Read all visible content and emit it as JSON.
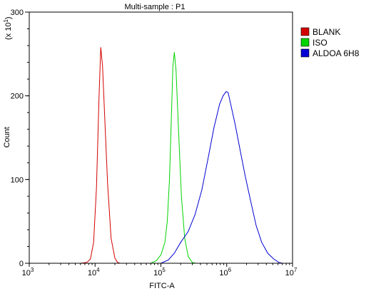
{
  "chart_data": {
    "type": "line",
    "title": "Multi-sample : P1",
    "xlabel": "FITC-A",
    "ylabel": "Count",
    "y_multiplier_label": "(x 10",
    "y_multiplier_exp": "1",
    "y_multiplier_close": ")",
    "x_scale": "log",
    "xlim": [
      1000,
      10000000
    ],
    "ylim": [
      0,
      300
    ],
    "x_ticks": [
      {
        "value": 1000,
        "base": "10",
        "exp": "3"
      },
      {
        "value": 10000,
        "base": "10",
        "exp": "4"
      },
      {
        "value": 100000,
        "base": "10",
        "exp": "5"
      },
      {
        "value": 1000000,
        "base": "10",
        "exp": "6"
      },
      {
        "value": 10000000,
        "base": "10",
        "exp": "7"
      }
    ],
    "y_ticks": [
      {
        "value": 0,
        "label": "0"
      },
      {
        "value": 100,
        "label": "100"
      },
      {
        "value": 200,
        "label": "200"
      },
      {
        "value": 300,
        "label": "300"
      }
    ],
    "legend_position": "right",
    "series": [
      {
        "name": "BLANK",
        "color": "#d40000",
        "points": [
          [
            6000,
            0
          ],
          [
            7500,
            1
          ],
          [
            8500,
            5
          ],
          [
            9500,
            25
          ],
          [
            10500,
            90
          ],
          [
            11500,
            200
          ],
          [
            12200,
            258
          ],
          [
            13000,
            235
          ],
          [
            14000,
            175
          ],
          [
            15500,
            95
          ],
          [
            17500,
            30
          ],
          [
            20000,
            6
          ],
          [
            22000,
            1
          ],
          [
            24000,
            0
          ]
        ]
      },
      {
        "name": "ISO",
        "color": "#00d400",
        "points": [
          [
            70000,
            0
          ],
          [
            85000,
            3
          ],
          [
            100000,
            10
          ],
          [
            115000,
            25
          ],
          [
            125000,
            50
          ],
          [
            135000,
            100
          ],
          [
            145000,
            180
          ],
          [
            152000,
            235
          ],
          [
            160000,
            252
          ],
          [
            170000,
            230
          ],
          [
            185000,
            160
          ],
          [
            205000,
            80
          ],
          [
            230000,
            30
          ],
          [
            260000,
            8
          ],
          [
            300000,
            1
          ],
          [
            340000,
            0
          ]
        ]
      },
      {
        "name": "ALDOA 6H8",
        "color": "#0000d4",
        "points": [
          [
            100000,
            0
          ],
          [
            130000,
            4
          ],
          [
            160000,
            12
          ],
          [
            200000,
            25
          ],
          [
            260000,
            38
          ],
          [
            330000,
            58
          ],
          [
            420000,
            88
          ],
          [
            520000,
            125
          ],
          [
            640000,
            162
          ],
          [
            780000,
            190
          ],
          [
            880000,
            200
          ],
          [
            980000,
            205
          ],
          [
            1050000,
            204
          ],
          [
            1150000,
            190
          ],
          [
            1350000,
            165
          ],
          [
            1600000,
            135
          ],
          [
            1900000,
            105
          ],
          [
            2300000,
            75
          ],
          [
            2800000,
            45
          ],
          [
            3400000,
            25
          ],
          [
            4200000,
            12
          ],
          [
            5200000,
            5
          ],
          [
            6200000,
            1
          ],
          [
            7000000,
            0
          ]
        ]
      }
    ]
  }
}
